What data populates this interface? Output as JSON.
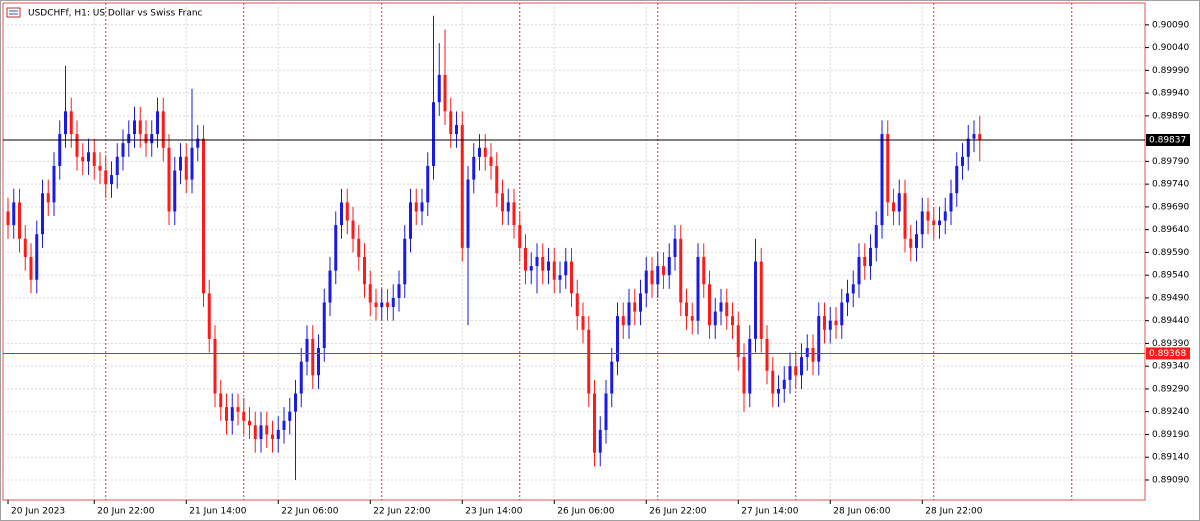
{
  "chart_data": {
    "type": "candlestick",
    "title": "USDCHFf, H1:  US Dollar vs Swiss Franc",
    "up_color": "#1a1ae6",
    "down_color": "#ff1a1a",
    "grid": true,
    "ylim": [
      0.89046,
      0.90138
    ],
    "yticks": [
      {
        "value": 0.9009,
        "label": "0.90090"
      },
      {
        "value": 0.9004,
        "label": "0.90040"
      },
      {
        "value": 0.8999,
        "label": "0.89990"
      },
      {
        "value": 0.8994,
        "label": "0.89940"
      },
      {
        "value": 0.8989,
        "label": "0.89890"
      },
      {
        "value": 0.8979,
        "label": "0.89790"
      },
      {
        "value": 0.8974,
        "label": "0.89740"
      },
      {
        "value": 0.8969,
        "label": "0.89690"
      },
      {
        "value": 0.8964,
        "label": "0.89640"
      },
      {
        "value": 0.8959,
        "label": "0.89590"
      },
      {
        "value": 0.8954,
        "label": "0.89540"
      },
      {
        "value": 0.8949,
        "label": "0.89490"
      },
      {
        "value": 0.8944,
        "label": "0.89440"
      },
      {
        "value": 0.8939,
        "label": "0.89390"
      },
      {
        "value": 0.8934,
        "label": "0.89340"
      },
      {
        "value": 0.8929,
        "label": "0.89290"
      },
      {
        "value": 0.8924,
        "label": "0.89240"
      },
      {
        "value": 0.8919,
        "label": "0.89190"
      },
      {
        "value": 0.8914,
        "label": "0.89140"
      },
      {
        "value": 0.8909,
        "label": "0.89090"
      }
    ],
    "levels": [
      {
        "value": 0.89837,
        "label": "0.89837",
        "color": "#000000"
      },
      {
        "value": 0.89368,
        "label": "0.89368",
        "color": "#ff1a1a"
      }
    ],
    "separators": [
      17,
      41,
      65,
      89,
      113,
      137,
      161,
      185
    ],
    "categories": [
      "20 Jun 2023",
      null,
      null,
      null,
      null,
      null,
      null,
      null,
      null,
      null,
      null,
      null,
      null,
      null,
      null,
      "20 Jun 22:00",
      null,
      null,
      null,
      null,
      null,
      null,
      null,
      null,
      null,
      null,
      null,
      null,
      null,
      null,
      null,
      "21 Jun 14:00",
      null,
      null,
      null,
      null,
      null,
      null,
      null,
      null,
      null,
      null,
      null,
      null,
      null,
      null,
      null,
      "22 Jun 06:00",
      null,
      null,
      null,
      null,
      null,
      null,
      null,
      null,
      null,
      null,
      null,
      null,
      null,
      null,
      null,
      "22 Jun 22:00",
      null,
      null,
      null,
      null,
      null,
      null,
      null,
      null,
      null,
      null,
      null,
      null,
      null,
      null,
      null,
      "23 Jun 14:00",
      null,
      null,
      null,
      null,
      null,
      null,
      null,
      null,
      null,
      null,
      null,
      null,
      null,
      null,
      null,
      "26 Jun 06:00",
      null,
      null,
      null,
      null,
      null,
      null,
      null,
      null,
      null,
      null,
      null,
      null,
      null,
      null,
      null,
      "26 Jun 22:00",
      null,
      null,
      null,
      null,
      null,
      null,
      null,
      null,
      null,
      null,
      null,
      null,
      null,
      null,
      null,
      "27 Jun 14:00",
      null,
      null,
      null,
      null,
      null,
      null,
      null,
      null,
      null,
      null,
      null,
      null,
      null,
      null,
      null,
      "28 Jun 06:00",
      null,
      null,
      null,
      null,
      null,
      null,
      null,
      null,
      null,
      null,
      null,
      null,
      null,
      null,
      null,
      "28 Jun 22:00",
      null,
      null,
      null,
      null,
      null,
      null,
      null,
      null,
      null,
      null
    ],
    "ohlc": [
      [
        0.8968,
        0.8971,
        0.8962,
        0.8965
      ],
      [
        0.8965,
        0.8973,
        0.8962,
        0.897
      ],
      [
        0.897,
        0.8973,
        0.8959,
        0.8962
      ],
      [
        0.8962,
        0.8965,
        0.8955,
        0.8958
      ],
      [
        0.8958,
        0.8961,
        0.895,
        0.8953
      ],
      [
        0.8953,
        0.8966,
        0.895,
        0.8963
      ],
      [
        0.8963,
        0.8975,
        0.896,
        0.8972
      ],
      [
        0.8972,
        0.8975,
        0.8967,
        0.897
      ],
      [
        0.897,
        0.8981,
        0.8967,
        0.8978
      ],
      [
        0.8978,
        0.8988,
        0.8975,
        0.8985
      ],
      [
        0.8985,
        0.9,
        0.8982,
        0.899
      ],
      [
        0.899,
        0.8993,
        0.8982,
        0.8985
      ],
      [
        0.8985,
        0.8988,
        0.8977,
        0.898
      ],
      [
        0.898,
        0.8983,
        0.8976,
        0.8979
      ],
      [
        0.8979,
        0.8984,
        0.8976,
        0.8981
      ],
      [
        0.8981,
        0.8984,
        0.8975,
        0.8978
      ],
      [
        0.8978,
        0.8981,
        0.8974,
        0.8977
      ],
      [
        0.8977,
        0.898,
        0.8971,
        0.8974
      ],
      [
        0.8974,
        0.8979,
        0.8971,
        0.8976
      ],
      [
        0.8976,
        0.8983,
        0.8973,
        0.898
      ],
      [
        0.898,
        0.8986,
        0.8977,
        0.8983
      ],
      [
        0.8983,
        0.8988,
        0.898,
        0.8985
      ],
      [
        0.8985,
        0.8991,
        0.8982,
        0.8988
      ],
      [
        0.8988,
        0.8991,
        0.8982,
        0.8985
      ],
      [
        0.8985,
        0.8988,
        0.898,
        0.8983
      ],
      [
        0.8983,
        0.8988,
        0.898,
        0.8985
      ],
      [
        0.8985,
        0.8993,
        0.8982,
        0.899
      ],
      [
        0.899,
        0.8993,
        0.8979,
        0.8982
      ],
      [
        0.8982,
        0.8985,
        0.8965,
        0.8968
      ],
      [
        0.8968,
        0.898,
        0.8965,
        0.8977
      ],
      [
        0.8977,
        0.8983,
        0.8974,
        0.898
      ],
      [
        0.898,
        0.8983,
        0.8972,
        0.8975
      ],
      [
        0.8975,
        0.8995,
        0.8972,
        0.8982
      ],
      [
        0.8982,
        0.8987,
        0.8979,
        0.8984
      ],
      [
        0.8984,
        0.8987,
        0.8947,
        0.895
      ],
      [
        0.895,
        0.8953,
        0.8937,
        0.894
      ],
      [
        0.894,
        0.8943,
        0.8925,
        0.8928
      ],
      [
        0.8928,
        0.8931,
        0.8922,
        0.8925
      ],
      [
        0.8925,
        0.8928,
        0.8919,
        0.8922
      ],
      [
        0.8922,
        0.8928,
        0.8919,
        0.8925
      ],
      [
        0.8925,
        0.8928,
        0.8921,
        0.8924
      ],
      [
        0.8924,
        0.8927,
        0.8919,
        0.8922
      ],
      [
        0.8922,
        0.8925,
        0.8918,
        0.8921
      ],
      [
        0.8921,
        0.8924,
        0.8915,
        0.8918
      ],
      [
        0.8918,
        0.8924,
        0.8915,
        0.8921
      ],
      [
        0.8921,
        0.8924,
        0.8916,
        0.8919
      ],
      [
        0.8919,
        0.8922,
        0.8915,
        0.8918
      ],
      [
        0.8918,
        0.8923,
        0.8915,
        0.892
      ],
      [
        0.892,
        0.8925,
        0.8917,
        0.8922
      ],
      [
        0.8922,
        0.8927,
        0.8919,
        0.8924
      ],
      [
        0.8924,
        0.8931,
        0.8909,
        0.8928
      ],
      [
        0.8928,
        0.8938,
        0.8925,
        0.8935
      ],
      [
        0.8935,
        0.8943,
        0.8932,
        0.894
      ],
      [
        0.894,
        0.8943,
        0.8929,
        0.8932
      ],
      [
        0.8932,
        0.8941,
        0.8929,
        0.8938
      ],
      [
        0.8938,
        0.8951,
        0.8935,
        0.8948
      ],
      [
        0.8948,
        0.8958,
        0.8945,
        0.8955
      ],
      [
        0.8955,
        0.8968,
        0.8952,
        0.8965
      ],
      [
        0.8965,
        0.8973,
        0.8962,
        0.897
      ],
      [
        0.897,
        0.8973,
        0.8963,
        0.8966
      ],
      [
        0.8966,
        0.8969,
        0.8959,
        0.8962
      ],
      [
        0.8962,
        0.8965,
        0.8955,
        0.8958
      ],
      [
        0.8958,
        0.8961,
        0.8949,
        0.8952
      ],
      [
        0.8952,
        0.8955,
        0.8945,
        0.8948
      ],
      [
        0.8948,
        0.8951,
        0.8944,
        0.8947
      ],
      [
        0.8947,
        0.8951,
        0.8944,
        0.8948
      ],
      [
        0.8948,
        0.8951,
        0.8944,
        0.8947
      ],
      [
        0.8947,
        0.8952,
        0.8944,
        0.8949
      ],
      [
        0.8949,
        0.8955,
        0.8946,
        0.8952
      ],
      [
        0.8952,
        0.8965,
        0.8949,
        0.8962
      ],
      [
        0.8962,
        0.8973,
        0.8959,
        0.897
      ],
      [
        0.897,
        0.8973,
        0.8965,
        0.8968
      ],
      [
        0.8968,
        0.8973,
        0.8965,
        0.897
      ],
      [
        0.897,
        0.8981,
        0.8967,
        0.8978
      ],
      [
        0.8978,
        0.9011,
        0.8975,
        0.8992
      ],
      [
        0.8992,
        0.9005,
        0.8989,
        0.8998
      ],
      [
        0.8998,
        0.9008,
        0.8987,
        0.899
      ],
      [
        0.899,
        0.8993,
        0.8982,
        0.8985
      ],
      [
        0.8985,
        0.899,
        0.8982,
        0.8987
      ],
      [
        0.8987,
        0.899,
        0.8957,
        0.896
      ],
      [
        0.896,
        0.8978,
        0.8943,
        0.8975
      ],
      [
        0.8975,
        0.8983,
        0.8972,
        0.898
      ],
      [
        0.898,
        0.8985,
        0.8977,
        0.8982
      ],
      [
        0.8982,
        0.8985,
        0.8977,
        0.898
      ],
      [
        0.898,
        0.8983,
        0.8975,
        0.8978
      ],
      [
        0.8978,
        0.8981,
        0.8969,
        0.8972
      ],
      [
        0.8972,
        0.8975,
        0.8965,
        0.8968
      ],
      [
        0.8968,
        0.8973,
        0.8965,
        0.897
      ],
      [
        0.897,
        0.8973,
        0.8962,
        0.8965
      ],
      [
        0.8965,
        0.8968,
        0.8957,
        0.896
      ],
      [
        0.896,
        0.8963,
        0.8952,
        0.8955
      ],
      [
        0.8955,
        0.8959,
        0.8952,
        0.8956
      ],
      [
        0.8956,
        0.8961,
        0.895,
        0.8958
      ],
      [
        0.8958,
        0.8961,
        0.8952,
        0.8955
      ],
      [
        0.8955,
        0.896,
        0.8952,
        0.8957
      ],
      [
        0.8957,
        0.896,
        0.895,
        0.8953
      ],
      [
        0.8953,
        0.8957,
        0.895,
        0.8954
      ],
      [
        0.8954,
        0.896,
        0.8951,
        0.8957
      ],
      [
        0.8957,
        0.896,
        0.8947,
        0.895
      ],
      [
        0.895,
        0.8953,
        0.8942,
        0.8945
      ],
      [
        0.8945,
        0.8948,
        0.8939,
        0.8942
      ],
      [
        0.8942,
        0.8945,
        0.8925,
        0.8928
      ],
      [
        0.8928,
        0.8931,
        0.8912,
        0.8915
      ],
      [
        0.8915,
        0.8923,
        0.8912,
        0.892
      ],
      [
        0.892,
        0.8931,
        0.8917,
        0.8928
      ],
      [
        0.8928,
        0.8938,
        0.8925,
        0.8935
      ],
      [
        0.8935,
        0.8948,
        0.8932,
        0.8945
      ],
      [
        0.8945,
        0.8948,
        0.894,
        0.8943
      ],
      [
        0.8943,
        0.8951,
        0.894,
        0.8948
      ],
      [
        0.8948,
        0.8951,
        0.8943,
        0.8946
      ],
      [
        0.8946,
        0.8953,
        0.8943,
        0.895
      ],
      [
        0.895,
        0.8958,
        0.8947,
        0.8955
      ],
      [
        0.8955,
        0.8958,
        0.8949,
        0.8952
      ],
      [
        0.8952,
        0.8959,
        0.8949,
        0.8956
      ],
      [
        0.8956,
        0.8959,
        0.8951,
        0.8954
      ],
      [
        0.8954,
        0.8961,
        0.8951,
        0.8958
      ],
      [
        0.8958,
        0.8965,
        0.8955,
        0.8962
      ],
      [
        0.8962,
        0.8965,
        0.8945,
        0.8948
      ],
      [
        0.8948,
        0.8951,
        0.8942,
        0.8945
      ],
      [
        0.8945,
        0.8948,
        0.8941,
        0.8944
      ],
      [
        0.8944,
        0.8961,
        0.8941,
        0.8958
      ],
      [
        0.8958,
        0.8961,
        0.8949,
        0.8952
      ],
      [
        0.8952,
        0.8955,
        0.894,
        0.8943
      ],
      [
        0.8943,
        0.8949,
        0.894,
        0.8946
      ],
      [
        0.8946,
        0.8951,
        0.8943,
        0.8948
      ],
      [
        0.8948,
        0.8951,
        0.8942,
        0.8945
      ],
      [
        0.8945,
        0.8948,
        0.894,
        0.8943
      ],
      [
        0.8943,
        0.8946,
        0.8933,
        0.8936
      ],
      [
        0.8936,
        0.8939,
        0.8924,
        0.8928
      ],
      [
        0.8928,
        0.8943,
        0.8925,
        0.894
      ],
      [
        0.894,
        0.8962,
        0.8937,
        0.8957
      ],
      [
        0.8957,
        0.896,
        0.8937,
        0.894
      ],
      [
        0.894,
        0.8943,
        0.893,
        0.8933
      ],
      [
        0.8933,
        0.8936,
        0.8925,
        0.8928
      ],
      [
        0.8928,
        0.8932,
        0.8925,
        0.8929
      ],
      [
        0.8929,
        0.8934,
        0.8926,
        0.8931
      ],
      [
        0.8931,
        0.8937,
        0.8928,
        0.8934
      ],
      [
        0.8934,
        0.8937,
        0.8929,
        0.8932
      ],
      [
        0.8932,
        0.8939,
        0.8929,
        0.8936
      ],
      [
        0.8936,
        0.8941,
        0.8933,
        0.8938
      ],
      [
        0.8938,
        0.8941,
        0.8932,
        0.8935
      ],
      [
        0.8935,
        0.8948,
        0.8932,
        0.8945
      ],
      [
        0.8945,
        0.8948,
        0.8939,
        0.8942
      ],
      [
        0.8942,
        0.8947,
        0.8939,
        0.8944
      ],
      [
        0.8944,
        0.8947,
        0.894,
        0.8943
      ],
      [
        0.8943,
        0.8951,
        0.894,
        0.8948
      ],
      [
        0.8948,
        0.8953,
        0.8945,
        0.895
      ],
      [
        0.895,
        0.8955,
        0.8947,
        0.8952
      ],
      [
        0.8952,
        0.8961,
        0.8949,
        0.8958
      ],
      [
        0.8958,
        0.8961,
        0.8953,
        0.8956
      ],
      [
        0.8956,
        0.8963,
        0.8953,
        0.896
      ],
      [
        0.896,
        0.8968,
        0.8957,
        0.8965
      ],
      [
        0.8965,
        0.8988,
        0.8962,
        0.8985
      ],
      [
        0.8985,
        0.8988,
        0.8967,
        0.897
      ],
      [
        0.897,
        0.8973,
        0.8965,
        0.8968
      ],
      [
        0.8968,
        0.8975,
        0.8965,
        0.8972
      ],
      [
        0.8972,
        0.8975,
        0.8959,
        0.8962
      ],
      [
        0.8962,
        0.8965,
        0.8957,
        0.896
      ],
      [
        0.896,
        0.8966,
        0.8957,
        0.8963
      ],
      [
        0.8963,
        0.8971,
        0.896,
        0.8968
      ],
      [
        0.8968,
        0.8971,
        0.8963,
        0.8966
      ],
      [
        0.8966,
        0.8969,
        0.8962,
        0.8965
      ],
      [
        0.8965,
        0.8969,
        0.8962,
        0.8966
      ],
      [
        0.8966,
        0.8971,
        0.8963,
        0.8968
      ],
      [
        0.8968,
        0.8975,
        0.8965,
        0.8972
      ],
      [
        0.8972,
        0.8981,
        0.8969,
        0.8978
      ],
      [
        0.8978,
        0.8983,
        0.8975,
        0.898
      ],
      [
        0.898,
        0.8987,
        0.8977,
        0.8984
      ],
      [
        0.8984,
        0.8988,
        0.8981,
        0.8985
      ],
      [
        0.8985,
        0.8989,
        0.8979,
        0.89837
      ]
    ]
  }
}
